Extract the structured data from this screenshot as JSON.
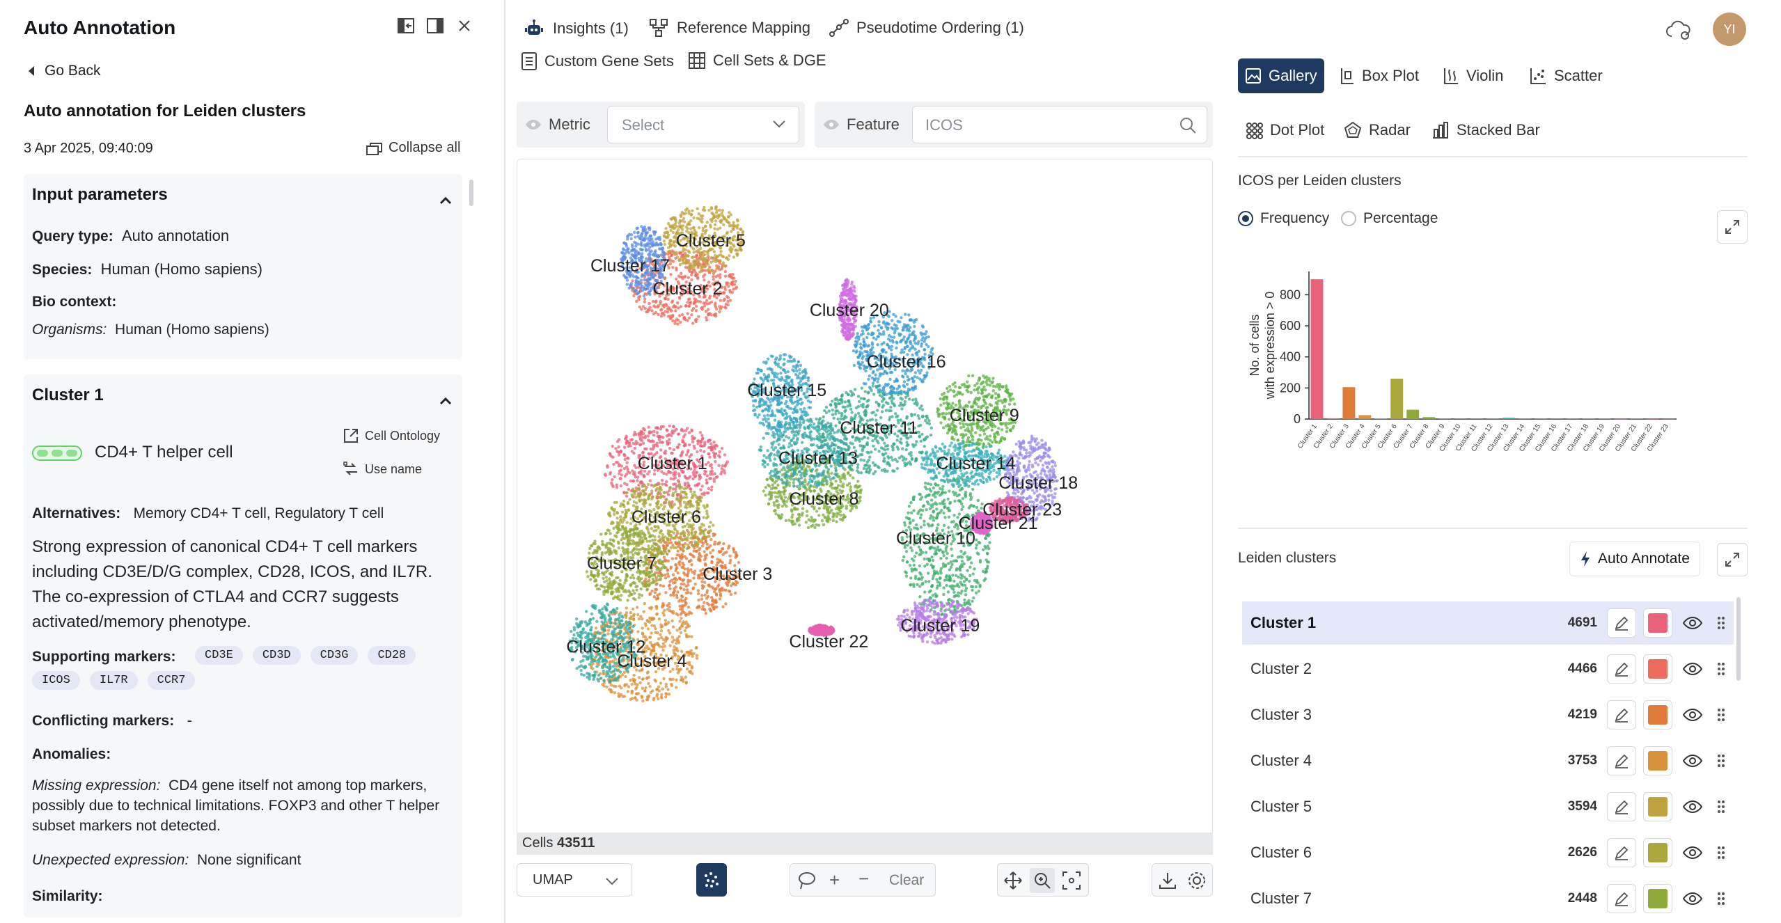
{
  "left_panel": {
    "title": "Auto Annotation",
    "go_back": "Go Back",
    "subtitle": "Auto annotation for Leiden clusters",
    "date": "3 Apr 2025, 09:40:09",
    "collapse_all": "Collapse all",
    "input_params": {
      "heading": "Input parameters",
      "query_type_label": "Query type:",
      "query_type_value": "Auto annotation",
      "species_label": "Species:",
      "species_value": "Human (Homo sapiens)",
      "bio_context_label": "Bio context:",
      "organisms_label": "Organisms:",
      "organisms_value": "Human (Homo sapiens)"
    },
    "cluster_card": {
      "heading": "Cluster 1",
      "cell_ontology": "Cell Ontology",
      "use_name": "Use name",
      "cell_type": "CD4+ T helper cell",
      "alternatives_label": "Alternatives:",
      "alternatives_value": "Memory CD4+ T cell, Regulatory T cell",
      "description": "Strong expression of canonical CD4+ T cell markers including CD3E/D/G complex, CD28, ICOS, and IL7R. The co-expression of CTLA4 and CCR7 suggests activated/memory phenotype.",
      "supporting_label": "Supporting markers:",
      "supporting_markers": [
        "CD3E",
        "CD3D",
        "CD3G",
        "CD28",
        "ICOS",
        "IL7R",
        "CCR7"
      ],
      "conflicting_label": "Conflicting markers:",
      "conflicting_value": "-",
      "anomalies_label": "Anomalies:",
      "missing_label": "Missing expression:",
      "missing_value": "CD4 gene itself not among top markers, possibly due to technical limitations. FOXP3 and other T helper subset markers not detected.",
      "unexpected_label": "Unexpected expression:",
      "unexpected_value": "None significant",
      "similarity_label": "Similarity:"
    }
  },
  "top_tabs": {
    "insights": "Insights (1)",
    "reference_mapping": "Reference Mapping",
    "pseudotime": "Pseudotime Ordering (1)",
    "custom_gene_sets": "Custom Gene Sets",
    "cell_sets_dge": "Cell Sets & DGE"
  },
  "user_initials": "YI",
  "filters": {
    "metric_label": "Metric",
    "metric_placeholder": "Select",
    "feature_label": "Feature",
    "feature_value": "ICOS"
  },
  "embedding": {
    "cells_label": "Cells",
    "cells_count": "43511",
    "projection": "UMAP",
    "clear_label": "Clear",
    "cluster_labels": [
      {
        "name": "Cluster 1"
      },
      {
        "name": "Cluster 2"
      },
      {
        "name": "Cluster 3"
      },
      {
        "name": "Cluster 4"
      },
      {
        "name": "Cluster 5"
      },
      {
        "name": "Cluster 6"
      },
      {
        "name": "Cluster 7"
      },
      {
        "name": "Cluster 8"
      },
      {
        "name": "Cluster 9"
      },
      {
        "name": "Cluster 10"
      },
      {
        "name": "Cluster 11"
      },
      {
        "name": "Cluster 12"
      },
      {
        "name": "Cluster 13"
      },
      {
        "name": "Cluster 14"
      },
      {
        "name": "Cluster 15"
      },
      {
        "name": "Cluster 16"
      },
      {
        "name": "Cluster 17"
      },
      {
        "name": "Cluster 18"
      },
      {
        "name": "Cluster 19"
      },
      {
        "name": "Cluster 20"
      },
      {
        "name": "Cluster 21"
      },
      {
        "name": "Cluster 22"
      },
      {
        "name": "Cluster 23"
      }
    ]
  },
  "viz_tabs": {
    "gallery": "Gallery",
    "box_plot": "Box Plot",
    "violin": "Violin",
    "scatter": "Scatter",
    "dot_plot": "Dot Plot",
    "radar": "Radar",
    "stacked_bar": "Stacked Bar"
  },
  "chart_panel": {
    "title": "ICOS per Leiden clusters",
    "frequency": "Frequency",
    "percentage": "Percentage",
    "selected_mode": "Frequency"
  },
  "chart_data": {
    "type": "bar",
    "ylabel": "No. of cells with expression > 0",
    "ylabel_lines": [
      "No. of cells",
      "with expression > 0"
    ],
    "ylim": [
      0,
      950
    ],
    "yticks": [
      0,
      200,
      400,
      600,
      800
    ],
    "categories": [
      "Cluster 1",
      "Cluster 2",
      "Cluster 3",
      "Cluster 4",
      "Cluster 5",
      "Cluster 6",
      "Cluster 7",
      "Cluster 8",
      "Cluster 9",
      "Cluster 10",
      "Cluster 11",
      "Cluster 12",
      "Cluster 13",
      "Cluster 14",
      "Cluster 15",
      "Cluster 16",
      "Cluster 17",
      "Cluster 18",
      "Cluster 19",
      "Cluster 20",
      "Cluster 21",
      "Cluster 22",
      "Cluster 23"
    ],
    "values": [
      900,
      5,
      205,
      25,
      3,
      260,
      60,
      12,
      3,
      4,
      3,
      2,
      8,
      4,
      2,
      3,
      2,
      2,
      2,
      1,
      2,
      1,
      1
    ],
    "colors": [
      "#e8637a",
      "#ec6b5c",
      "#e07b39",
      "#d9913a",
      "#bfa33f",
      "#a8a83c",
      "#8fa93a",
      "#7cac3f",
      "#5cb143",
      "#3fae6a",
      "#38a98a",
      "#37ab9f",
      "#3aa9a7",
      "#3cb0b9",
      "#3ba6c7",
      "#3a9bd3",
      "#5c8ee6",
      "#9a8ceb",
      "#b77ce8",
      "#cf6ee0",
      "#e063c9",
      "#e65fb0",
      "#d9619a"
    ],
    "grid": false,
    "legend": "none"
  },
  "legend_panel": {
    "title": "Leiden clusters",
    "auto_annotate": "Auto Annotate",
    "rows": [
      {
        "name": "Cluster 1",
        "count": "4691",
        "color": "#e8637a",
        "selected": true
      },
      {
        "name": "Cluster 2",
        "count": "4466",
        "color": "#ec6b5c",
        "selected": false
      },
      {
        "name": "Cluster 3",
        "count": "4219",
        "color": "#e07b39",
        "selected": false
      },
      {
        "name": "Cluster 4",
        "count": "3753",
        "color": "#d9913a",
        "selected": false
      },
      {
        "name": "Cluster 5",
        "count": "3594",
        "color": "#bfa33f",
        "selected": false
      },
      {
        "name": "Cluster 6",
        "count": "2626",
        "color": "#a8a83c",
        "selected": false
      },
      {
        "name": "Cluster 7",
        "count": "2448",
        "color": "#8fa93a",
        "selected": false
      }
    ]
  }
}
